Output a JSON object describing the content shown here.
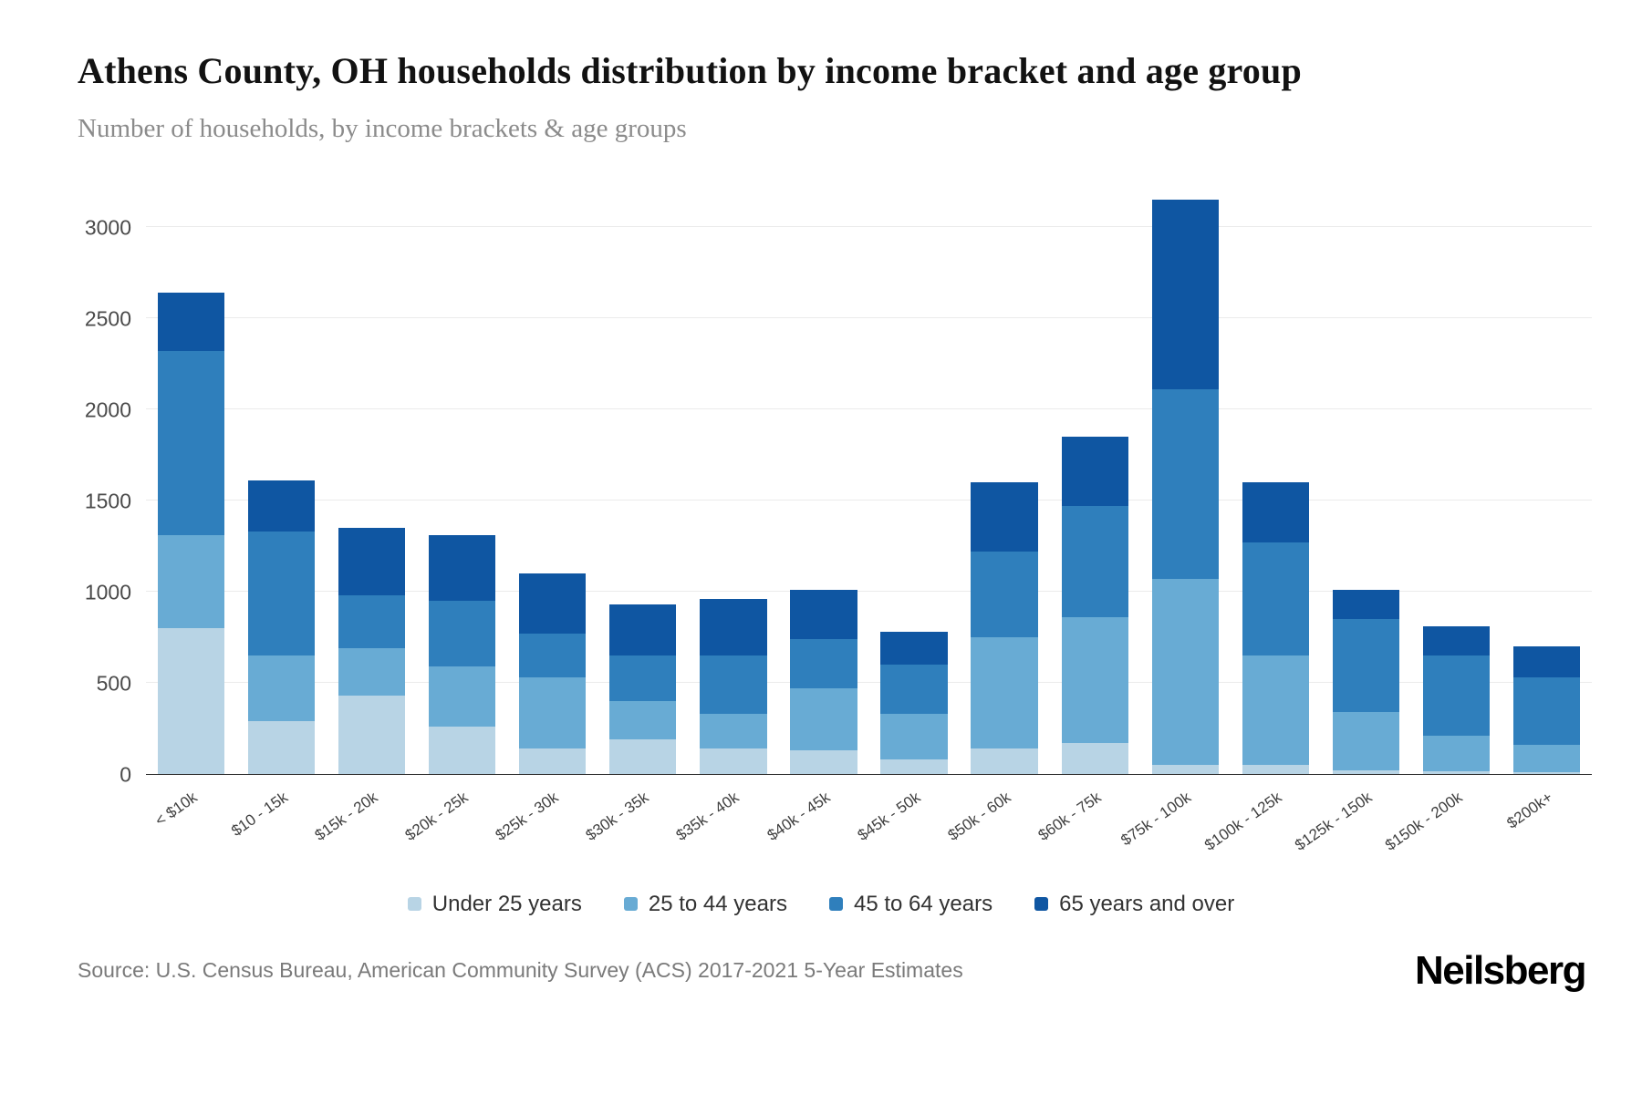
{
  "header": {
    "title": "Athens County, OH households distribution by income bracket and age group",
    "subtitle": "Number of households, by income brackets & age groups"
  },
  "chart_data": {
    "type": "bar",
    "stacked": true,
    "title": "Athens County, OH households distribution by income bracket and age group",
    "xlabel": "",
    "ylabel": "Number of households",
    "categories": [
      "< $10k",
      "$10 - 15k",
      "$15k - 20k",
      "$20k - 25k",
      "$25k - 30k",
      "$30k - 35k",
      "$35k - 40k",
      "$40k - 45k",
      "$45k - 50k",
      "$50k - 60k",
      "$60k - 75k",
      "$75k - 100k",
      "$100k - 125k",
      "$125k - 150k",
      "$150k - 200k",
      "$200k+"
    ],
    "series": [
      {
        "name": "Under 25 years",
        "color": "#b8d4e5",
        "values": [
          800,
          290,
          430,
          260,
          140,
          190,
          140,
          130,
          80,
          140,
          170,
          50,
          50,
          20,
          15,
          10
        ]
      },
      {
        "name": "25 to 44 years",
        "color": "#68abd4",
        "values": [
          510,
          360,
          260,
          330,
          390,
          210,
          190,
          340,
          250,
          610,
          690,
          1020,
          600,
          320,
          195,
          150
        ]
      },
      {
        "name": "45 to 64 years",
        "color": "#2f7fbc",
        "values": [
          1010,
          680,
          290,
          360,
          240,
          250,
          320,
          270,
          270,
          470,
          610,
          1040,
          620,
          510,
          440,
          370
        ]
      },
      {
        "name": "65 years and over",
        "color": "#0f56a2",
        "values": [
          320,
          280,
          370,
          360,
          330,
          280,
          310,
          270,
          180,
          380,
          380,
          1040,
          330,
          160,
          160,
          170
        ]
      }
    ],
    "yticks": [
      0,
      500,
      1000,
      1500,
      2000,
      2500,
      3000
    ],
    "ylim": [
      0,
      3200
    ],
    "grid": true,
    "legend_position": "bottom"
  },
  "footer": {
    "source": "Source: U.S. Census Bureau, American Community Survey (ACS) 2017-2021 5-Year Estimates",
    "brand": "Neilsberg"
  }
}
